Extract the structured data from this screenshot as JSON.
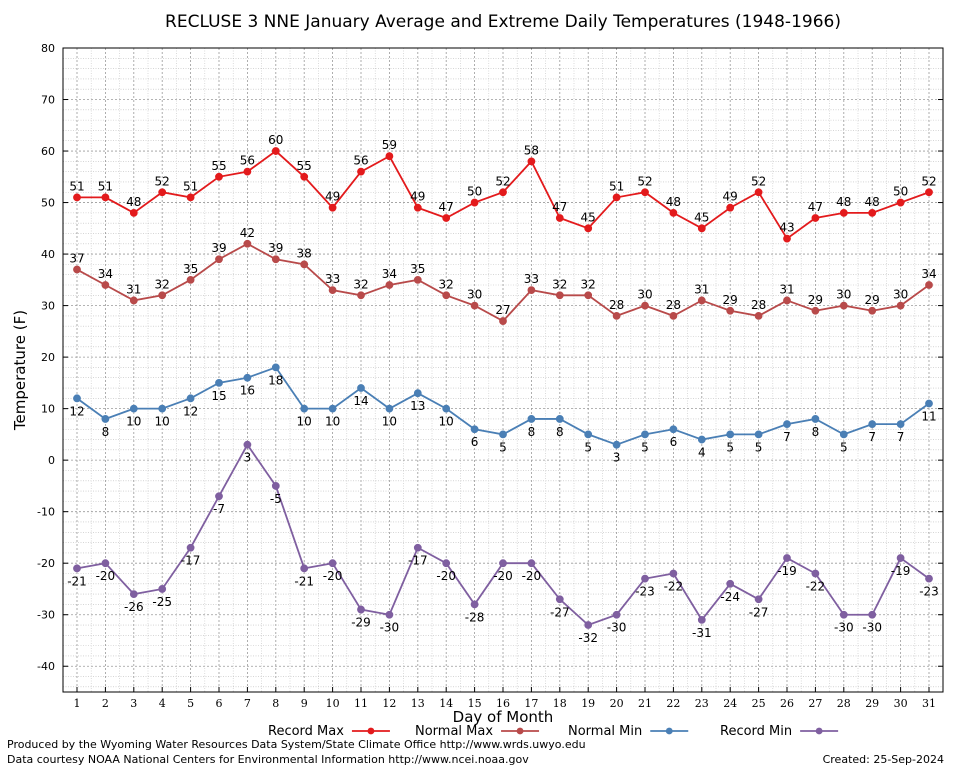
{
  "chart_data": {
    "type": "line",
    "title": "RECLUSE 3 NNE January Average and Extreme Daily Temperatures (1948-1966)",
    "xlabel": "Day of Month",
    "ylabel": "Temperature (F)",
    "ylim": [
      -45,
      80
    ],
    "yticks": [
      80,
      70,
      60,
      50,
      40,
      30,
      20,
      10,
      0,
      -10,
      -20,
      -30,
      -40
    ],
    "x": [
      1,
      2,
      3,
      4,
      5,
      6,
      7,
      8,
      9,
      10,
      11,
      12,
      13,
      14,
      15,
      16,
      17,
      18,
      19,
      20,
      21,
      22,
      23,
      24,
      25,
      26,
      27,
      28,
      29,
      30,
      31
    ],
    "grid": true,
    "legend_position": "bottom",
    "series": [
      {
        "name": "Record Max",
        "color": "#e31a1c",
        "label_pos": "above",
        "values": [
          51,
          51,
          48,
          52,
          51,
          55,
          56,
          60,
          55,
          49,
          56,
          59,
          49,
          47,
          50,
          52,
          58,
          47,
          45,
          51,
          52,
          48,
          45,
          49,
          52,
          43,
          47,
          48,
          48,
          50,
          52
        ]
      },
      {
        "name": "Normal Max",
        "color": "#b84a4a",
        "label_pos": "above",
        "values": [
          37,
          34,
          31,
          32,
          35,
          39,
          42,
          39,
          38,
          33,
          32,
          34,
          35,
          32,
          30,
          27,
          33,
          32,
          32,
          28,
          30,
          28,
          31,
          29,
          28,
          31,
          29,
          30,
          29,
          30,
          34
        ]
      },
      {
        "name": "Normal Min",
        "color": "#4a7fb5",
        "label_pos": "below",
        "values": [
          12,
          8,
          10,
          10,
          12,
          15,
          16,
          18,
          10,
          10,
          14,
          10,
          13,
          10,
          6,
          5,
          8,
          8,
          5,
          3,
          5,
          6,
          4,
          5,
          5,
          7,
          8,
          5,
          7,
          7,
          11
        ]
      },
      {
        "name": "Record Min",
        "color": "#7f5fa0",
        "label_pos": "below",
        "values": [
          -21,
          -20,
          -26,
          -25,
          -17,
          -7,
          3,
          -5,
          -21,
          -20,
          -29,
          -30,
          -17,
          -20,
          -28,
          -20,
          -20,
          -27,
          -32,
          -30,
          -23,
          -22,
          -31,
          -24,
          -27,
          -19,
          -22,
          -30,
          -30,
          -19,
          -23
        ]
      }
    ]
  },
  "footer": {
    "line1": "Produced by the Wyoming Water Resources Data System/State Climate Office http://www.wrds.uwyo.edu",
    "line2": "Data courtesy NOAA National Centers for Environmental Information http://www.ncei.noaa.gov",
    "created": "Created:  25-Sep-2024"
  }
}
